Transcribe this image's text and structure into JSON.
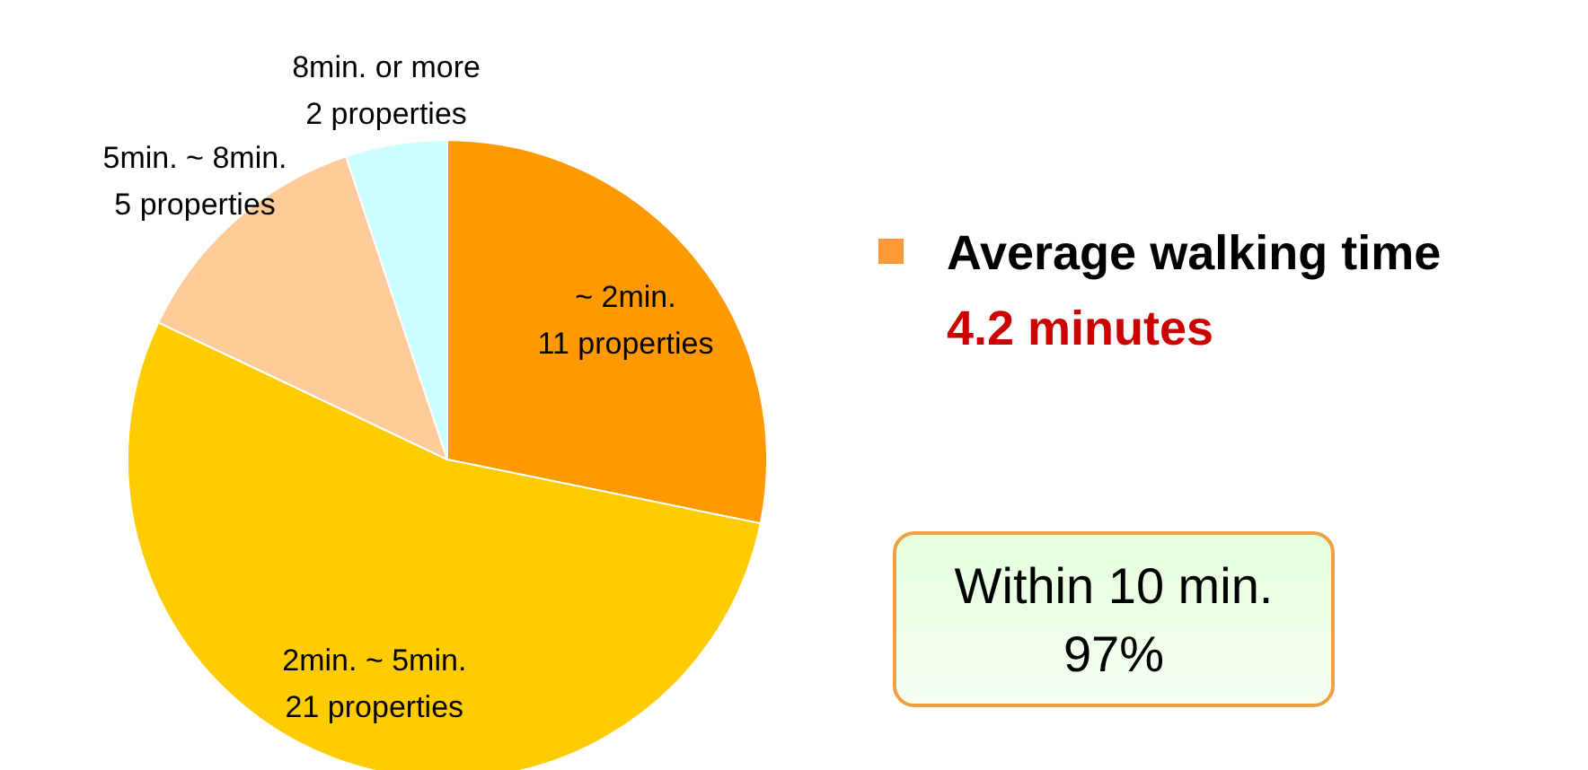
{
  "chart_data": {
    "type": "pie",
    "categories": [
      "~ 2min.",
      "2min. ~ 5min.",
      "5min. ~ 8min.",
      "8min. or more"
    ],
    "values": [
      11,
      21,
      5,
      2
    ],
    "value_labels": [
      "11 properties",
      "21 properties",
      "5 properties",
      "2 properties"
    ],
    "colors": [
      "#ff9900",
      "#ffcc00",
      "#ffcc99",
      "#ccffff"
    ],
    "annotations": [
      "Average walking time",
      "4.2 minutes",
      "Within 10 min.",
      "97%"
    ]
  }
}
